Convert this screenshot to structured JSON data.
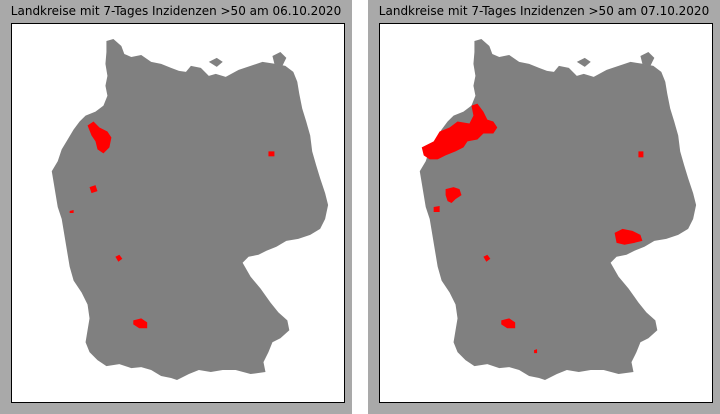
{
  "colors": {
    "background": "#a9a9a9",
    "plot_background": "#ffffff",
    "land": "#808080",
    "highlight": "#ff0000"
  },
  "maps": [
    {
      "title": "Landkreise mit 7-Tages Inzidenzen >50 am 06.10.2020",
      "highlighted_regions": [
        "Cloppenburg/Vechta area",
        "Münsterland",
        "Rhineland",
        "Mannheim area",
        "Ostalb area",
        "Berlin"
      ]
    },
    {
      "title": "Landkreise mit 7-Tages Inzidenzen >50 am 07.10.2020",
      "highlighted_regions": [
        "Emsland/Cloppenburg/Vechta/Bremen area",
        "Münsterland",
        "Rhineland",
        "Mannheim area",
        "Ostalb area",
        "Berlin",
        "Erzgebirge area",
        "Garmisch area"
      ]
    }
  ]
}
